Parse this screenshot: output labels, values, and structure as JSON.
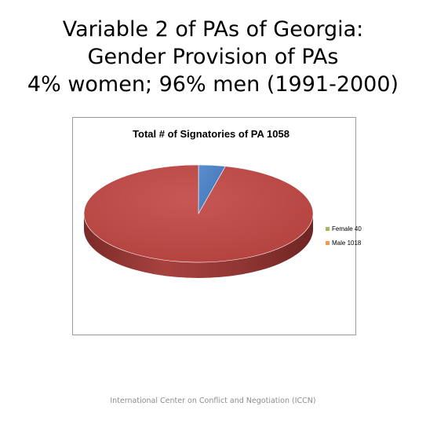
{
  "slide": {
    "title_lines": [
      "Variable 2 of PAs of Georgia:",
      "Gender Provision of PAs",
      "4% women; 96% men (1991-2000)"
    ],
    "footer": "International Center on Conflict and Negotiation (ICCN)"
  },
  "chart_data": {
    "type": "pie",
    "title": "Total # of Signatories of PA 1058",
    "three_d": true,
    "legend_position": "right",
    "legend_entries": [
      "Female 40",
      "Male 1018"
    ],
    "slices": [
      {
        "label": "Female",
        "value": 40,
        "color": "#4f81bd",
        "legend_color": "#9bbb59"
      },
      {
        "label": "Male",
        "value": 1018,
        "color": "#c0504d",
        "legend_color": "#f79646"
      }
    ]
  }
}
